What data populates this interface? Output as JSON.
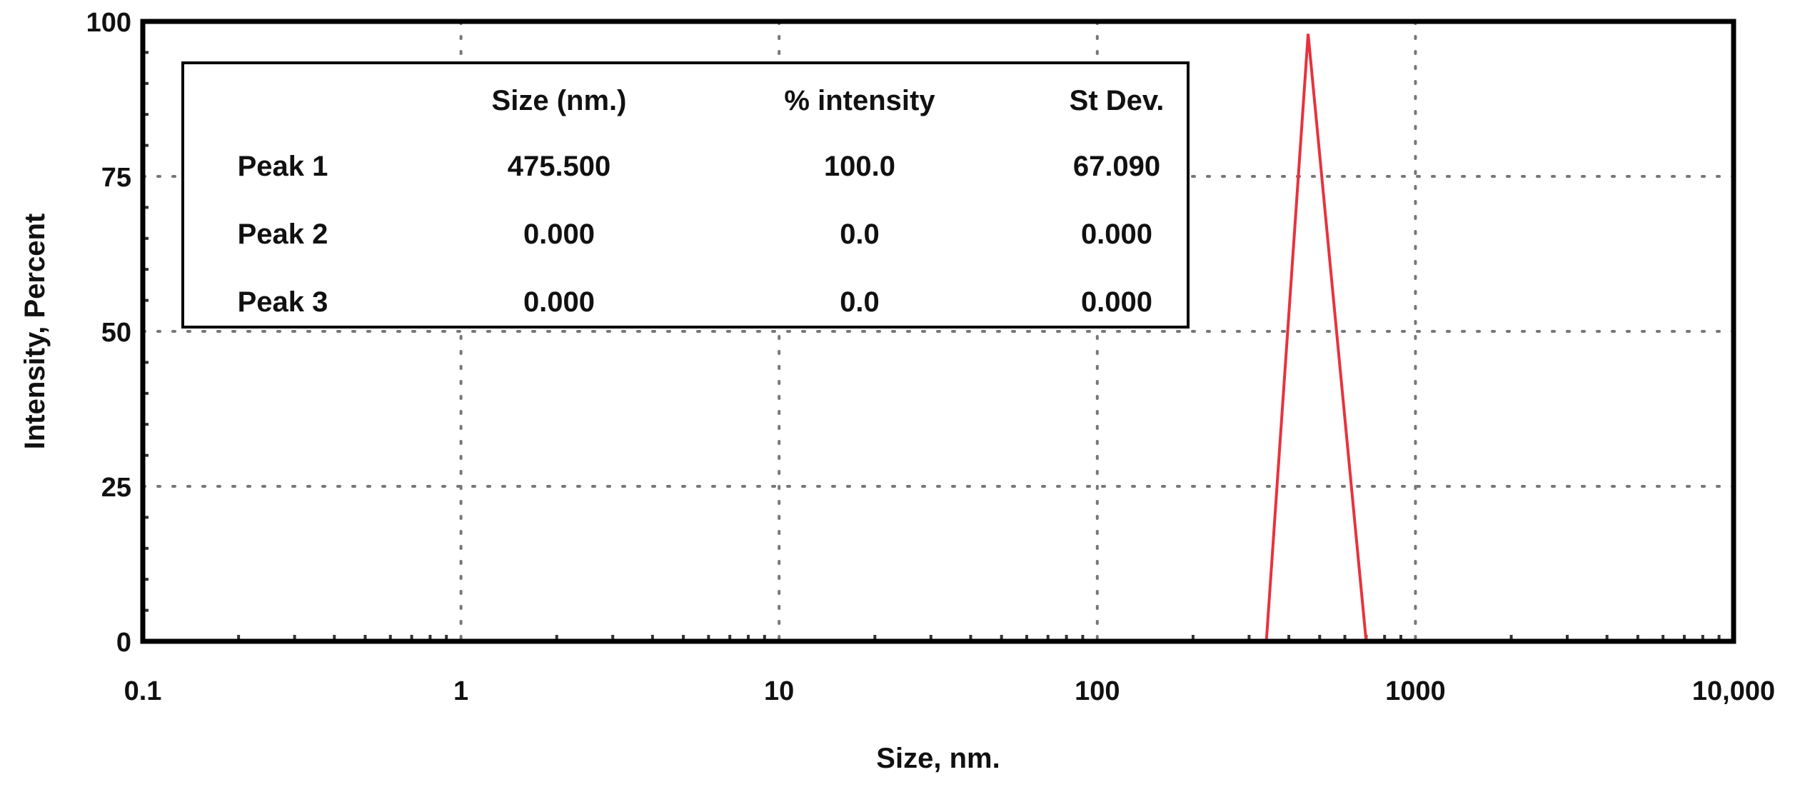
{
  "chart_data": {
    "type": "line",
    "title": "",
    "xlabel": "Size, nm.",
    "ylabel": "Intensity, Percent",
    "xscale": "log",
    "xlim": [
      0.1,
      10000
    ],
    "ylim": [
      0,
      100
    ],
    "grid": true,
    "x_tick_labels": [
      "0.1",
      "1",
      "10",
      "100",
      "1000",
      "10,000"
    ],
    "x_tick_values": [
      0.1,
      1,
      10,
      100,
      1000,
      10000
    ],
    "y_tick_labels": [
      "0",
      "25",
      "50",
      "75",
      "100"
    ],
    "y_tick_values": [
      0,
      25,
      50,
      75,
      100
    ],
    "series": [
      {
        "color": "#e8323c",
        "x": [
          0.1,
          1,
          10,
          100,
          340,
          460,
          700,
          1000,
          10000
        ],
        "y": [
          0,
          0,
          0,
          0,
          0,
          98,
          0,
          0,
          0
        ]
      }
    ],
    "table": {
      "headers": [
        "",
        "Size (nm.)",
        "% intensity",
        "St Dev."
      ],
      "rows": [
        [
          "Peak 1",
          "475.500",
          "100.0",
          "67.090"
        ],
        [
          "Peak 2",
          "0.000",
          "0.0",
          "0.000"
        ],
        [
          "Peak 3",
          "0.000",
          "0.0",
          "0.000"
        ]
      ]
    }
  }
}
